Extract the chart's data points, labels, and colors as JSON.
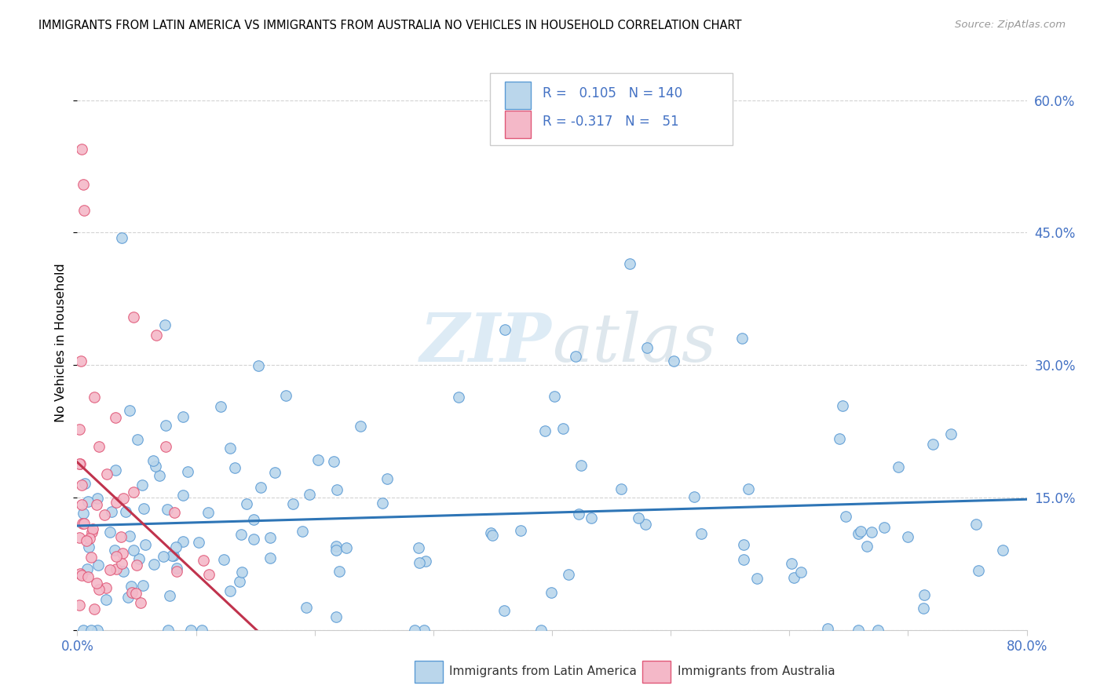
{
  "title": "IMMIGRANTS FROM LATIN AMERICA VS IMMIGRANTS FROM AUSTRALIA NO VEHICLES IN HOUSEHOLD CORRELATION CHART",
  "source": "Source: ZipAtlas.com",
  "ylabel": "No Vehicles in Household",
  "legend_blue_R": "0.105",
  "legend_blue_N": "140",
  "legend_pink_R": "-0.317",
  "legend_pink_N": "51",
  "blue_fill": "#bad6eb",
  "blue_edge": "#5b9bd5",
  "pink_fill": "#f4b8c8",
  "pink_edge": "#e05878",
  "blue_line": "#2e75b6",
  "pink_line": "#c0334d",
  "xlim": [
    0.0,
    0.8
  ],
  "ylim": [
    0.0,
    0.65
  ],
  "xtick_positions": [
    0.0,
    0.1,
    0.2,
    0.3,
    0.4,
    0.5,
    0.6,
    0.7,
    0.8
  ],
  "ytick_positions": [
    0.0,
    0.15,
    0.3,
    0.45,
    0.6
  ],
  "ytick_labels": [
    "",
    "15.0%",
    "30.0%",
    "45.0%",
    "60.0%"
  ],
  "background_color": "#ffffff",
  "grid_color": "#d3d3d3",
  "blue_trend_x": [
    0.0,
    0.8
  ],
  "blue_trend_y": [
    0.118,
    0.148
  ],
  "pink_trend_x": [
    0.0,
    0.155
  ],
  "pink_trend_y": [
    0.19,
    -0.005
  ]
}
